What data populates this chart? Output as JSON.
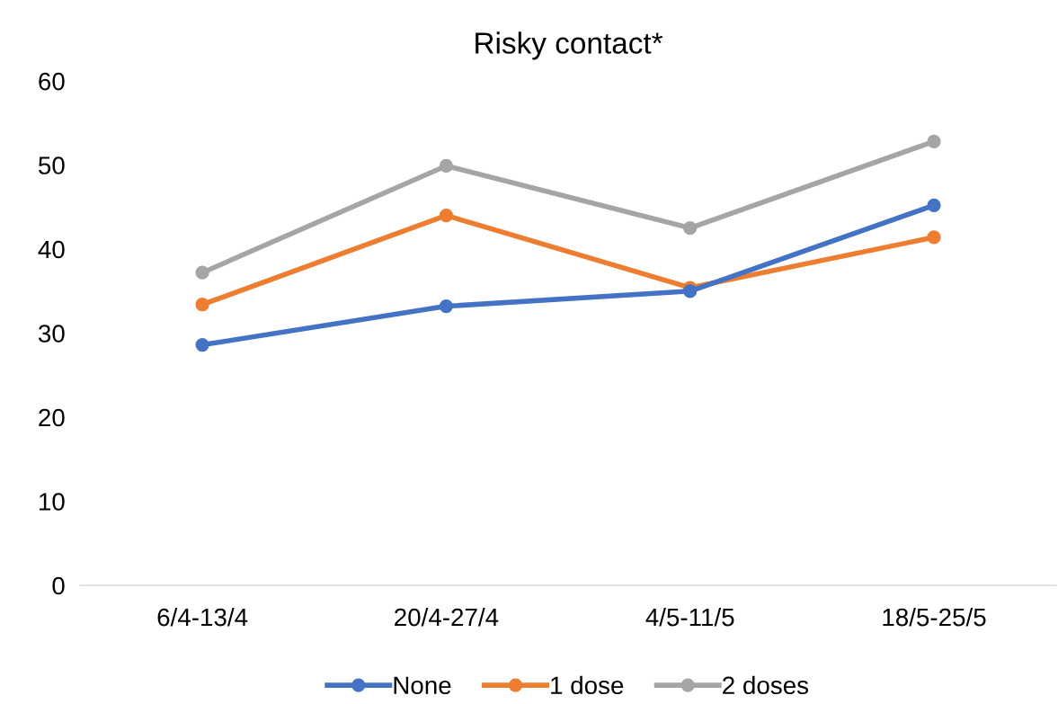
{
  "chart_data": {
    "type": "line",
    "title": "Risky contact*",
    "categories": [
      "6/4-13/4",
      "20/4-27/4",
      "4/5-11/5",
      "18/5-25/5"
    ],
    "series": [
      {
        "name": "None",
        "color": "#4472c4",
        "values": [
          28.6,
          33.2,
          35.0,
          45.2
        ]
      },
      {
        "name": "1 dose",
        "color": "#ed7d31",
        "values": [
          33.4,
          44.0,
          35.4,
          41.4
        ]
      },
      {
        "name": "2 doses",
        "color": "#a5a5a5",
        "values": [
          37.2,
          49.9,
          42.5,
          52.8
        ]
      }
    ],
    "ylim": [
      0,
      60
    ],
    "yticks": [
      0,
      10,
      20,
      30,
      40,
      50,
      60
    ],
    "grid": false,
    "legend": "bottom",
    "marker": "circle",
    "line_style": "solid"
  }
}
